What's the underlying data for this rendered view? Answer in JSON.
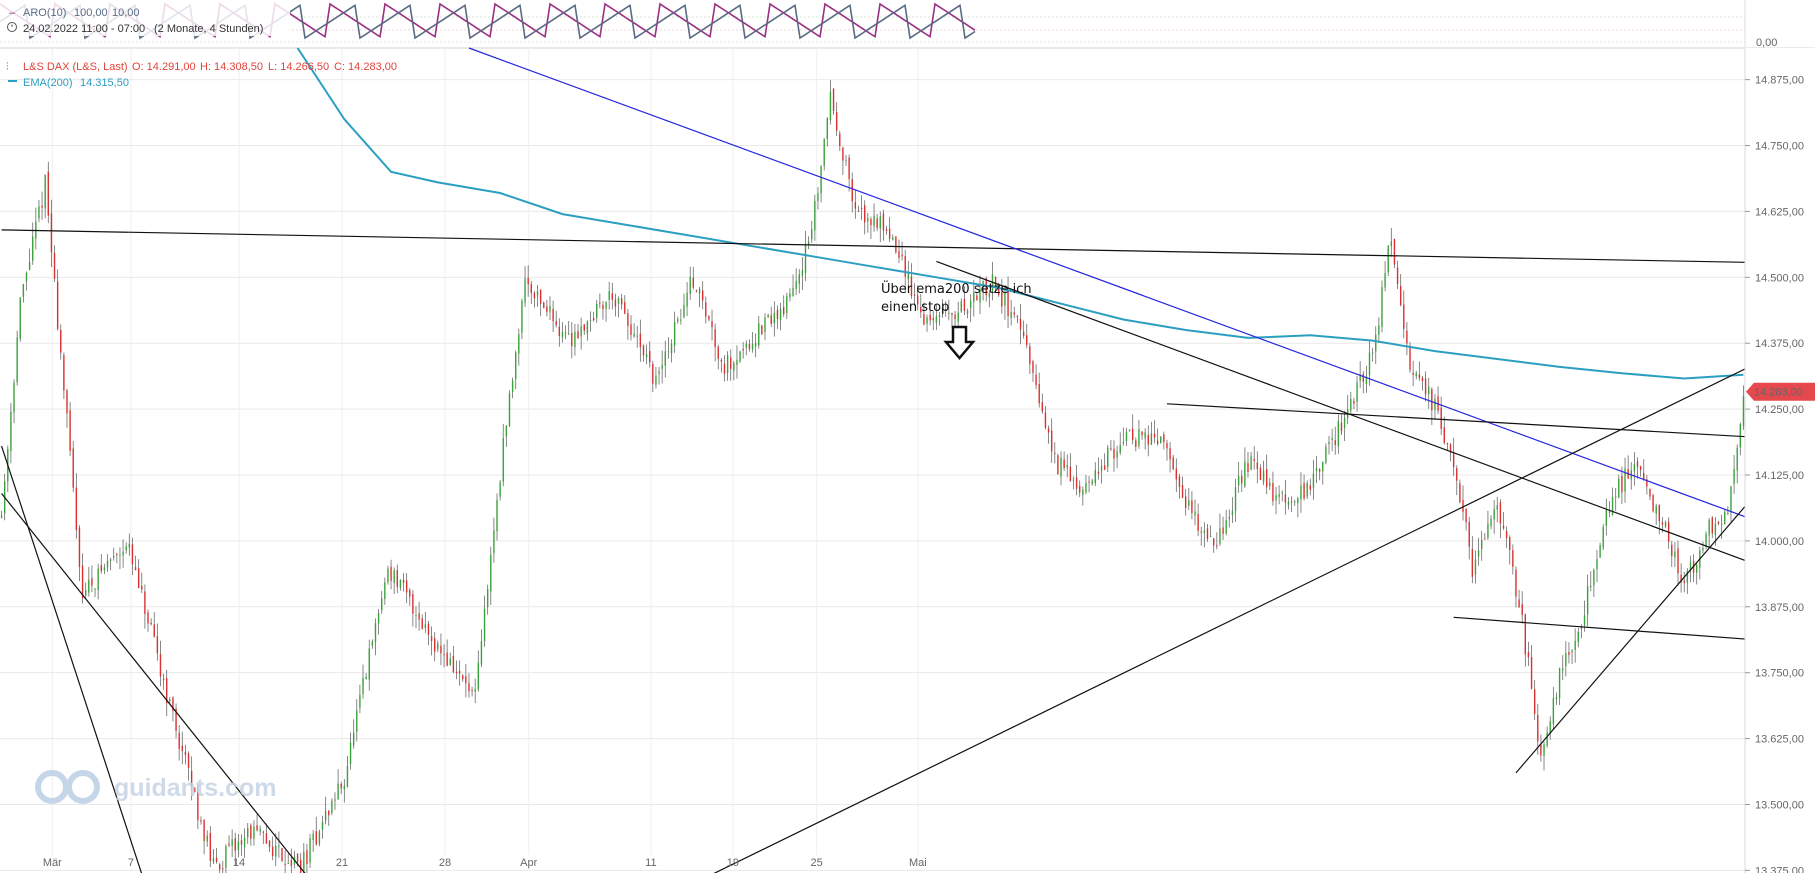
{
  "aroon_panel": {
    "indicator_label": "ARO(10)",
    "value_up": "100,00",
    "value_down": "10,00",
    "period_label": "24.02.2022 11:00 - 07:00",
    "range_label": "(2 Monate, 4 Stunden)",
    "axis_label": "0,00",
    "colors": {
      "up": "#9b2f82",
      "down": "#5a6b84"
    }
  },
  "legend": {
    "instrument": "L&S DAX (L&S, Last)",
    "open": "O: 14.291,00",
    "high": "H: 14.308,50",
    "low": "L: 14.266,50",
    "close": "C: 14.283,00",
    "ema_label": "EMA(200)",
    "ema_value": "14.315,50",
    "instrument_color": "#e0443c",
    "ema_color": "#2b9fc2"
  },
  "last_price": {
    "label": "14.283,00",
    "value": 14283,
    "color": "#e5484d"
  },
  "annotation": {
    "line1": "Über ema200 setze ich",
    "line2": "einen stop"
  },
  "logo_text": "guidants.com",
  "chart_data": {
    "type": "candlestick",
    "y_axis_labels": [
      "14.875,00",
      "14.750,00",
      "14.625,00",
      "14.500,00",
      "14.375,00",
      "14.250,00",
      "14.125,00",
      "14.000,00",
      "13.875,00",
      "13.750,00",
      "13.625,00",
      "13.500,00",
      "13.375,00"
    ],
    "y_axis_values": [
      14875,
      14750,
      14625,
      14500,
      14375,
      14250,
      14125,
      14000,
      13875,
      13750,
      13625,
      13500,
      13375
    ],
    "ylim": [
      13370,
      14935
    ],
    "x_axis_labels": [
      "Mär",
      "7",
      "14",
      "21",
      "28",
      "Apr",
      "11",
      "19",
      "25",
      "Mai"
    ],
    "x_tick_positions": [
      0.03,
      0.075,
      0.137,
      0.196,
      0.255,
      0.303,
      0.373,
      0.42,
      0.468,
      0.526
    ],
    "bar_count": 560,
    "key_prices": [
      {
        "bar": 0,
        "price": 14050
      },
      {
        "bar": 6,
        "price": 14450
      },
      {
        "bar": 14,
        "price": 14680
      },
      {
        "bar": 26,
        "price": 13900
      },
      {
        "bar": 40,
        "price": 14000
      },
      {
        "bar": 58,
        "price": 13600
      },
      {
        "bar": 68,
        "price": 13380
      },
      {
        "bar": 80,
        "price": 13450
      },
      {
        "bar": 96,
        "price": 13380
      },
      {
        "bar": 110,
        "price": 13550
      },
      {
        "bar": 124,
        "price": 13950
      },
      {
        "bar": 140,
        "price": 13800
      },
      {
        "bar": 152,
        "price": 13700
      },
      {
        "bar": 160,
        "price": 14130
      },
      {
        "bar": 168,
        "price": 14500
      },
      {
        "bar": 182,
        "price": 14380
      },
      {
        "bar": 196,
        "price": 14470
      },
      {
        "bar": 210,
        "price": 14300
      },
      {
        "bar": 222,
        "price": 14500
      },
      {
        "bar": 232,
        "price": 14330
      },
      {
        "bar": 252,
        "price": 14450
      },
      {
        "bar": 260,
        "price": 14580
      },
      {
        "bar": 266,
        "price": 14850
      },
      {
        "bar": 274,
        "price": 14620
      },
      {
        "bar": 284,
        "price": 14600
      },
      {
        "bar": 296,
        "price": 14420
      },
      {
        "bar": 306,
        "price": 14430
      },
      {
        "bar": 318,
        "price": 14490
      },
      {
        "bar": 326,
        "price": 14420
      },
      {
        "bar": 338,
        "price": 14150
      },
      {
        "bar": 348,
        "price": 14100
      },
      {
        "bar": 360,
        "price": 14200
      },
      {
        "bar": 372,
        "price": 14190
      },
      {
        "bar": 382,
        "price": 14050
      },
      {
        "bar": 390,
        "price": 14000
      },
      {
        "bar": 400,
        "price": 14150
      },
      {
        "bar": 410,
        "price": 14080
      },
      {
        "bar": 420,
        "price": 14100
      },
      {
        "bar": 432,
        "price": 14250
      },
      {
        "bar": 440,
        "price": 14350
      },
      {
        "bar": 446,
        "price": 14580
      },
      {
        "bar": 452,
        "price": 14340
      },
      {
        "bar": 460,
        "price": 14250
      },
      {
        "bar": 466,
        "price": 14150
      },
      {
        "bar": 472,
        "price": 13950
      },
      {
        "bar": 480,
        "price": 14080
      },
      {
        "bar": 488,
        "price": 13850
      },
      {
        "bar": 494,
        "price": 13580
      },
      {
        "bar": 500,
        "price": 13750
      },
      {
        "bar": 508,
        "price": 13870
      },
      {
        "bar": 516,
        "price": 14070
      },
      {
        "bar": 524,
        "price": 14150
      },
      {
        "bar": 532,
        "price": 14050
      },
      {
        "bar": 540,
        "price": 13920
      },
      {
        "bar": 548,
        "price": 14020
      },
      {
        "bar": 554,
        "price": 14040
      },
      {
        "bar": 559,
        "price": 14283
      }
    ],
    "ema200": [
      {
        "bar": 95,
        "price": 14935
      },
      {
        "bar": 110,
        "price": 14800
      },
      {
        "bar": 125,
        "price": 14700
      },
      {
        "bar": 140,
        "price": 14680
      },
      {
        "bar": 160,
        "price": 14660
      },
      {
        "bar": 180,
        "price": 14620
      },
      {
        "bar": 200,
        "price": 14600
      },
      {
        "bar": 220,
        "price": 14580
      },
      {
        "bar": 240,
        "price": 14560
      },
      {
        "bar": 260,
        "price": 14540
      },
      {
        "bar": 280,
        "price": 14520
      },
      {
        "bar": 300,
        "price": 14500
      },
      {
        "bar": 320,
        "price": 14480
      },
      {
        "bar": 340,
        "price": 14450
      },
      {
        "bar": 360,
        "price": 14420
      },
      {
        "bar": 380,
        "price": 14400
      },
      {
        "bar": 400,
        "price": 14385
      },
      {
        "bar": 420,
        "price": 14390
      },
      {
        "bar": 440,
        "price": 14380
      },
      {
        "bar": 460,
        "price": 14360
      },
      {
        "bar": 480,
        "price": 14345
      },
      {
        "bar": 500,
        "price": 14330
      },
      {
        "bar": 520,
        "price": 14318
      },
      {
        "bar": 540,
        "price": 14308
      },
      {
        "bar": 559,
        "price": 14315
      }
    ],
    "trendlines": [
      {
        "name": "horizontal-resistance",
        "color": "#111111",
        "from": {
          "bar": 0,
          "price": 14590
        },
        "to": {
          "bar": 1000,
          "price": 14480
        }
      },
      {
        "name": "blue-downtrend",
        "color": "#2424e0",
        "from": {
          "bar": 150,
          "price": 14935
        },
        "to": {
          "bar": 880,
          "price": 13350
        }
      },
      {
        "name": "black-downtrend",
        "color": "#111111",
        "from": {
          "bar": 300,
          "price": 14530
        },
        "to": {
          "bar": 840,
          "price": 13350
        }
      },
      {
        "name": "mid-channel-top",
        "color": "#111111",
        "from": {
          "bar": 374,
          "price": 14260
        },
        "to": {
          "bar": 1000,
          "price": 14050
        }
      },
      {
        "name": "mid-channel-bottom",
        "color": "#111111",
        "from": {
          "bar": 466,
          "price": 13855
        },
        "to": {
          "bar": 1000,
          "price": 13620
        }
      },
      {
        "name": "uptrend-support",
        "color": "#111111",
        "from": {
          "bar": 222,
          "price": 13350
        },
        "to": {
          "bar": 770,
          "price": 14935
        }
      },
      {
        "name": "steep-uptrend",
        "color": "#111111",
        "from": {
          "bar": 486,
          "price": 13560
        },
        "to": {
          "bar": 686,
          "price": 14935
        }
      },
      {
        "name": "left-steep-down-1",
        "color": "#111111",
        "from": {
          "bar": 0,
          "price": 14180
        },
        "to": {
          "bar": 46,
          "price": 13350
        }
      },
      {
        "name": "left-steep-down-2",
        "color": "#111111",
        "from": {
          "bar": 0,
          "price": 14090
        },
        "to": {
          "bar": 100,
          "price": 13350
        }
      }
    ],
    "candle_colors": {
      "up": "#3ba23b",
      "down": "#d9312f",
      "wick": "#6a6a6a"
    }
  }
}
